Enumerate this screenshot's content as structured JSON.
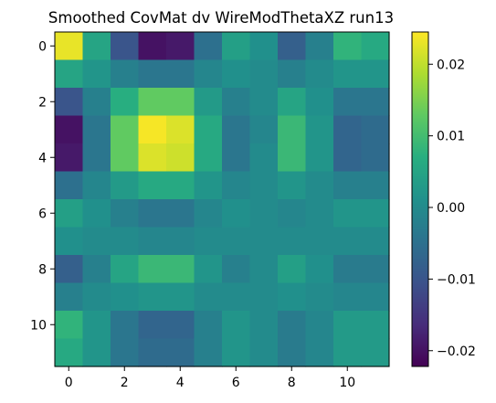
{
  "chart_data": {
    "type": "heatmap",
    "title": "Smoothed CovMat dv WireModThetaXZ run13",
    "xlabel": "",
    "ylabel": "",
    "x_range": [
      -0.5,
      11.5
    ],
    "y_range": [
      -0.5,
      11.5
    ],
    "x_ticks": [
      0,
      2,
      4,
      6,
      8,
      10
    ],
    "y_ticks": [
      0,
      2,
      4,
      6,
      8,
      10
    ],
    "x_tick_labels": [
      "0",
      "2",
      "4",
      "6",
      "8",
      "10"
    ],
    "y_tick_labels": [
      "0",
      "2",
      "4",
      "6",
      "8",
      "10"
    ],
    "colormap": "viridis",
    "colorbar": {
      "range": [
        -0.0222,
        0.0245
      ],
      "ticks": [
        -0.02,
        -0.01,
        0.0,
        0.01,
        0.02
      ],
      "tick_labels": [
        "−0.02",
        "−0.01",
        "0.00",
        "0.01",
        "0.02"
      ]
    },
    "grid": false,
    "values": [
      [
        0.023,
        0.005,
        -0.01,
        -0.02,
        -0.019,
        -0.005,
        0.004,
        0.001,
        -0.008,
        -0.002,
        0.008,
        0.006
      ],
      [
        0.005,
        0.002,
        -0.002,
        -0.004,
        -0.004,
        -0.001,
        0.001,
        0.0,
        -0.002,
        0.0,
        0.002,
        0.002
      ],
      [
        -0.01,
        -0.002,
        0.007,
        0.013,
        0.013,
        0.003,
        -0.002,
        0.0,
        0.005,
        0.001,
        -0.004,
        -0.004
      ],
      [
        -0.02,
        -0.004,
        0.013,
        0.024,
        0.022,
        0.006,
        -0.004,
        -0.001,
        0.009,
        0.002,
        -0.007,
        -0.006
      ],
      [
        -0.019,
        -0.004,
        0.013,
        0.022,
        0.021,
        0.006,
        -0.004,
        0.0,
        0.009,
        0.002,
        -0.007,
        -0.006
      ],
      [
        -0.005,
        -0.001,
        0.003,
        0.006,
        0.006,
        0.002,
        -0.001,
        0.0,
        0.002,
        0.0,
        -0.002,
        -0.002
      ],
      [
        0.004,
        0.001,
        -0.002,
        -0.004,
        -0.004,
        -0.001,
        0.001,
        0.0,
        -0.001,
        0.0,
        0.002,
        0.002
      ],
      [
        0.001,
        0.0,
        0.0,
        -0.001,
        -0.001,
        0.0,
        0.0,
        0.0,
        0.0,
        0.0,
        0.0,
        0.0
      ],
      [
        -0.008,
        -0.002,
        0.005,
        0.009,
        0.009,
        0.002,
        -0.002,
        0.0,
        0.004,
        0.001,
        -0.003,
        -0.003
      ],
      [
        -0.002,
        0.0,
        0.001,
        0.002,
        0.002,
        0.0,
        0.0,
        0.0,
        0.001,
        0.0,
        -0.001,
        -0.001
      ],
      [
        0.008,
        0.002,
        -0.004,
        -0.007,
        -0.007,
        -0.002,
        0.002,
        0.0,
        -0.003,
        -0.001,
        0.003,
        0.003
      ],
      [
        0.006,
        0.002,
        -0.004,
        -0.006,
        -0.006,
        -0.002,
        0.002,
        0.0,
        -0.003,
        -0.001,
        0.003,
        0.003
      ]
    ]
  }
}
